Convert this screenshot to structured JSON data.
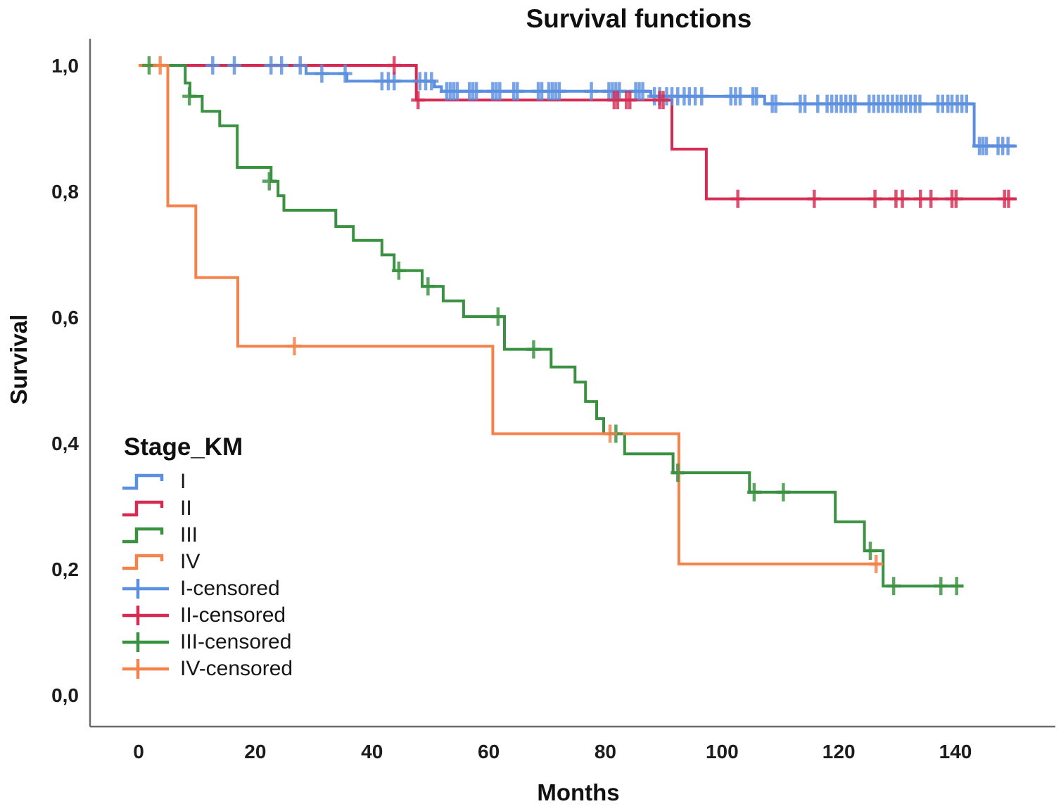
{
  "chart_data": {
    "type": "line",
    "subtype": "kaplan-meier-step",
    "title": "Survival functions",
    "xlabel": "Months",
    "ylabel": "Survival",
    "xlim": [
      0,
      155
    ],
    "ylim": [
      0.0,
      1.0
    ],
    "grid": false,
    "x_ticks": [
      {
        "label": "0",
        "value": 0
      },
      {
        "label": "20",
        "value": 20
      },
      {
        "label": "40",
        "value": 40
      },
      {
        "label": "60",
        "value": 60
      },
      {
        "label": "80",
        "value": 80
      },
      {
        "label": "100",
        "value": 100
      },
      {
        "label": "120",
        "value": 120
      },
      {
        "label": "140",
        "value": 140
      }
    ],
    "y_ticks": [
      {
        "label": "1,0",
        "value": 1.0
      },
      {
        "label": "0,8",
        "value": 0.8
      },
      {
        "label": "0,6",
        "value": 0.6
      },
      {
        "label": "0,4",
        "value": 0.4
      },
      {
        "label": "0,2",
        "value": 0.2
      },
      {
        "label": "0,0",
        "value": 0.0
      }
    ],
    "series": [
      {
        "name": "I",
        "color": "#5B8FE0",
        "start": [
          0,
          1.0
        ],
        "steps": [
          [
            28.7,
            0.987
          ],
          [
            35.7,
            0.975
          ],
          [
            50.7,
            0.966
          ],
          [
            51.9,
            0.959
          ],
          [
            87.8,
            0.951
          ],
          [
            107.3,
            0.939
          ],
          [
            143.2,
            0.872
          ]
        ],
        "end_month": 150.5,
        "censored": [
          [
            12.7,
            1
          ],
          [
            16.4,
            1
          ],
          [
            22.7,
            1
          ],
          [
            24.5,
            1
          ],
          [
            27.7,
            1
          ],
          [
            31.4,
            0.987
          ],
          [
            35.4,
            0.987
          ],
          [
            41.7,
            0.975
          ],
          [
            42.8,
            0.975
          ],
          [
            43.8,
            0.975
          ],
          [
            48.2,
            0.975
          ],
          [
            49.2,
            0.975
          ],
          [
            50.2,
            0.975
          ],
          [
            52.8,
            0.959
          ],
          [
            53.4,
            0.959
          ],
          [
            54,
            0.959
          ],
          [
            54.6,
            0.959
          ],
          [
            56.7,
            0.959
          ],
          [
            57.3,
            0.959
          ],
          [
            57.9,
            0.959
          ],
          [
            60.7,
            0.959
          ],
          [
            61.3,
            0.959
          ],
          [
            61.9,
            0.959
          ],
          [
            64.3,
            0.959
          ],
          [
            64.9,
            0.959
          ],
          [
            68.5,
            0.959
          ],
          [
            69.1,
            0.959
          ],
          [
            70.3,
            0.959
          ],
          [
            70.9,
            0.959
          ],
          [
            71.5,
            0.959
          ],
          [
            72.1,
            0.959
          ],
          [
            77.6,
            0.959
          ],
          [
            80.6,
            0.959
          ],
          [
            81.2,
            0.959
          ],
          [
            81.8,
            0.959
          ],
          [
            82.4,
            0.959
          ],
          [
            85.2,
            0.959
          ],
          [
            85.8,
            0.959
          ],
          [
            86.4,
            0.959
          ],
          [
            88.4,
            0.951
          ],
          [
            89.3,
            0.951
          ],
          [
            90.5,
            0.951
          ],
          [
            91.4,
            0.951
          ],
          [
            92.4,
            0.951
          ],
          [
            93.5,
            0.951
          ],
          [
            94.4,
            0.951
          ],
          [
            95.4,
            0.951
          ],
          [
            96.5,
            0.951
          ],
          [
            101.5,
            0.951
          ],
          [
            102.3,
            0.951
          ],
          [
            103.1,
            0.951
          ],
          [
            105.3,
            0.951
          ],
          [
            105.9,
            0.951
          ],
          [
            108.6,
            0.939
          ],
          [
            109.2,
            0.939
          ],
          [
            113.4,
            0.939
          ],
          [
            114.2,
            0.939
          ],
          [
            116.4,
            0.939
          ],
          [
            118,
            0.939
          ],
          [
            118.8,
            0.939
          ],
          [
            119.6,
            0.939
          ],
          [
            120.4,
            0.939
          ],
          [
            121.2,
            0.939
          ],
          [
            122,
            0.939
          ],
          [
            122.8,
            0.939
          ],
          [
            125.2,
            0.939
          ],
          [
            126,
            0.939
          ],
          [
            126.8,
            0.939
          ],
          [
            127.6,
            0.939
          ],
          [
            128.4,
            0.939
          ],
          [
            129.2,
            0.939
          ],
          [
            130,
            0.939
          ],
          [
            130.7,
            0.939
          ],
          [
            131.5,
            0.939
          ],
          [
            132.3,
            0.939
          ],
          [
            133.1,
            0.939
          ],
          [
            133.9,
            0.939
          ],
          [
            137,
            0.939
          ],
          [
            137.8,
            0.939
          ],
          [
            138.7,
            0.939
          ],
          [
            139.4,
            0.939
          ],
          [
            140.3,
            0.939
          ],
          [
            141.1,
            0.939
          ],
          [
            141.9,
            0.939
          ],
          [
            144.1,
            0.872
          ],
          [
            144.7,
            0.872
          ],
          [
            145.3,
            0.872
          ],
          [
            147.3,
            0.872
          ],
          [
            148.1,
            0.872
          ],
          [
            149,
            0.872
          ]
        ]
      },
      {
        "name": "II",
        "color": "#D62B52",
        "start": [
          0,
          1.0
        ],
        "steps": [
          [
            47.6,
            0.945
          ],
          [
            91.4,
            0.867
          ],
          [
            97.3,
            0.788
          ]
        ],
        "end_month": 150.5,
        "censored": [
          [
            43.8,
            1
          ],
          [
            47.9,
            0.945
          ],
          [
            81.5,
            0.945
          ],
          [
            82.1,
            0.945
          ],
          [
            83.6,
            0.945
          ],
          [
            84.2,
            0.945
          ],
          [
            89.3,
            0.945
          ],
          [
            89.9,
            0.945
          ],
          [
            102.7,
            0.788
          ],
          [
            115.8,
            0.788
          ],
          [
            126.2,
            0.788
          ],
          [
            129.8,
            0.788
          ],
          [
            130.9,
            0.788
          ],
          [
            134,
            0.788
          ],
          [
            135.8,
            0.788
          ],
          [
            139.4,
            0.788
          ],
          [
            140.1,
            0.788
          ],
          [
            148.4,
            0.788
          ],
          [
            149.1,
            0.788
          ]
        ]
      },
      {
        "name": "III",
        "color": "#3A9142",
        "start": [
          0,
          1.0
        ],
        "steps": [
          [
            8,
            0.972
          ],
          [
            8.8,
            0.951
          ],
          [
            10.9,
            0.927
          ],
          [
            13.9,
            0.904
          ],
          [
            16.9,
            0.838
          ],
          [
            22.7,
            0.816
          ],
          [
            23.9,
            0.793
          ],
          [
            24.9,
            0.77
          ],
          [
            33.8,
            0.744
          ],
          [
            36.8,
            0.722
          ],
          [
            41.7,
            0.699
          ],
          [
            43.8,
            0.674
          ],
          [
            48.6,
            0.649
          ],
          [
            52.2,
            0.626
          ],
          [
            55.7,
            0.601
          ],
          [
            62.7,
            0.549
          ],
          [
            70.7,
            0.521
          ],
          [
            74.8,
            0.497
          ],
          [
            76.6,
            0.466
          ],
          [
            78.5,
            0.439
          ],
          [
            79.7,
            0.415
          ],
          [
            83.3,
            0.383
          ],
          [
            91.6,
            0.353
          ],
          [
            104.7,
            0.322
          ],
          [
            119.4,
            0.275
          ],
          [
            124.4,
            0.229
          ],
          [
            127.6,
            0.173
          ]
        ],
        "end_month": 141.3,
        "censored": [
          [
            1.8,
            1
          ],
          [
            8.7,
            0.951
          ],
          [
            22.4,
            0.816
          ],
          [
            44.6,
            0.674
          ],
          [
            49.6,
            0.649
          ],
          [
            61.6,
            0.601
          ],
          [
            67.7,
            0.549
          ],
          [
            81.8,
            0.415
          ],
          [
            92.4,
            0.353
          ],
          [
            105.5,
            0.322
          ],
          [
            110.5,
            0.322
          ],
          [
            125.4,
            0.229
          ],
          [
            129.4,
            0.173
          ],
          [
            137.5,
            0.173
          ],
          [
            140.2,
            0.173
          ]
        ]
      },
      {
        "name": "IV",
        "color": "#F5814B",
        "start": [
          0,
          1.0
        ],
        "steps": [
          [
            5,
            0.777
          ],
          [
            9.8,
            0.663
          ],
          [
            17,
            0.554
          ],
          [
            60.7,
            0.415
          ],
          [
            92.6,
            0.208
          ]
        ],
        "end_month": 127.5,
        "censored": [
          [
            3.7,
            1
          ],
          [
            26.7,
            0.554
          ],
          [
            80.8,
            0.415
          ],
          [
            126.4,
            0.208
          ]
        ]
      }
    ],
    "legend": {
      "title": "Stage_KM",
      "position": "inside-left-bottom",
      "entries": [
        {
          "label": "I",
          "series": "I",
          "type": "line"
        },
        {
          "label": "II",
          "series": "II",
          "type": "line"
        },
        {
          "label": "III",
          "series": "III",
          "type": "line"
        },
        {
          "label": "IV",
          "series": "IV",
          "type": "line"
        },
        {
          "label": "I-censored",
          "series": "I",
          "type": "censor"
        },
        {
          "label": "II-censored",
          "series": "II",
          "type": "censor"
        },
        {
          "label": "III-censored",
          "series": "III",
          "type": "censor"
        },
        {
          "label": "IV-censored",
          "series": "IV",
          "type": "censor"
        }
      ]
    },
    "axis_color": "#6b6b6b",
    "tick_label_color": "#1c1c1c"
  }
}
